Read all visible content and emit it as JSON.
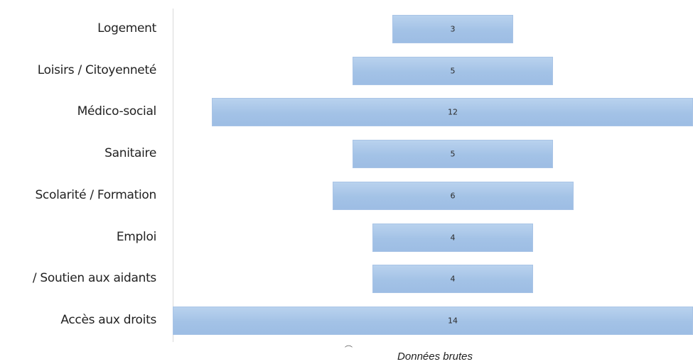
{
  "chart_data": {
    "type": "bar",
    "orientation": "horizontal",
    "categories": [
      "Logement",
      "Loisirs / Citoyenneté",
      "Médico-social",
      "Sanitaire",
      "Scolarité / Formation",
      "Emploi",
      "/ Soutien aux aidants",
      "Accès aux droits"
    ],
    "values": [
      3,
      5,
      12,
      5,
      6,
      4,
      4,
      14
    ],
    "value_labels": [
      "3",
      "5",
      "12",
      "5",
      "6",
      "4",
      "4",
      "14"
    ],
    "bar_color": "#a6c4e8",
    "layout": "centered (funnel-style)",
    "caption": "Données brutes"
  }
}
